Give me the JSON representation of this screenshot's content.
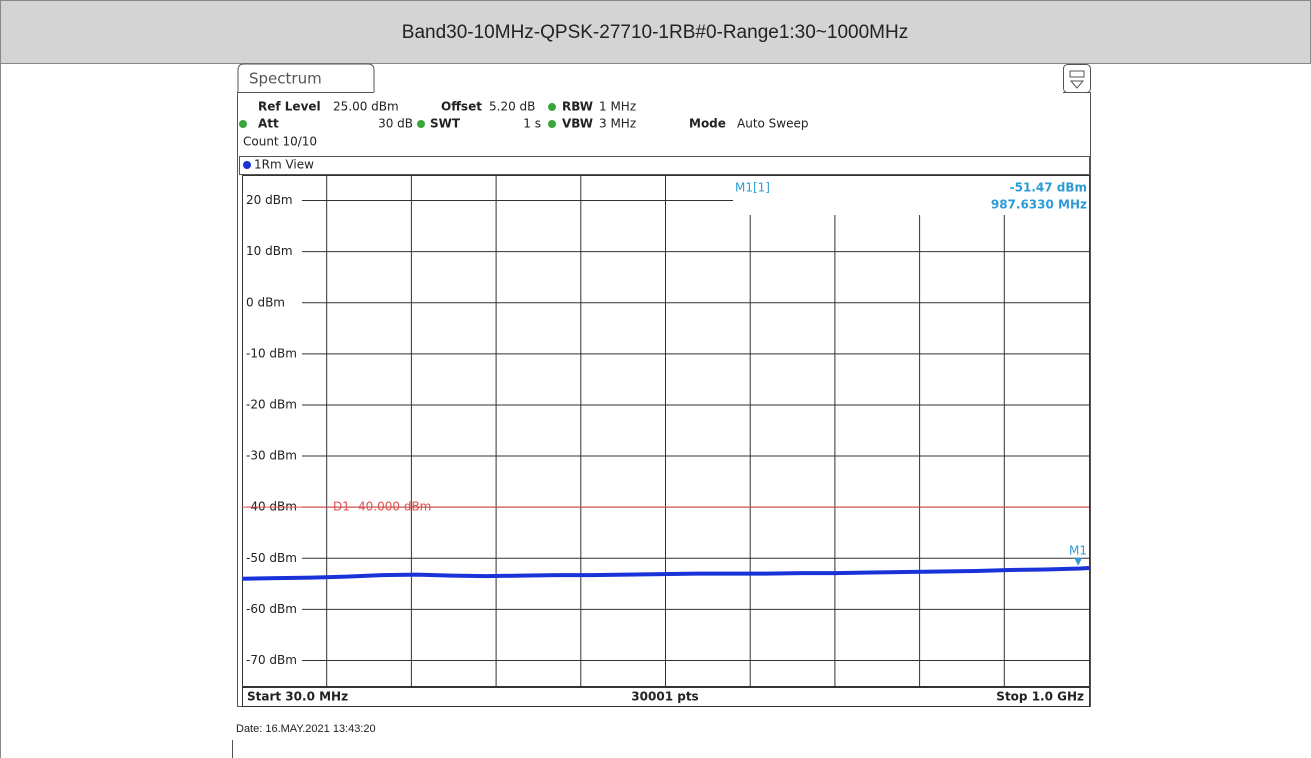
{
  "header": {
    "title": "Band30-10MHz-QPSK-27710-1RB#0-Range1:30~1000MHz"
  },
  "screen": {
    "tab": "Spectrum",
    "settings": [
      {
        "label": "Ref Level",
        "value": "25.00 dBm"
      },
      {
        "label": "Offset",
        "value": "5.20 dB"
      },
      {
        "label": "RBW",
        "value": "1 MHz"
      },
      {
        "label": "Att",
        "value": "30 dB"
      },
      {
        "label": "SWT",
        "value": "1 s"
      },
      {
        "label": "VBW",
        "value": "3 MHz"
      },
      {
        "label": "Mode",
        "value": "Auto Sweep"
      }
    ],
    "count": "Count 10/10",
    "view": "1Rm View",
    "start": "Start 30.0 MHz",
    "points": "30001 pts",
    "stop": "Stop 1.0 GHz",
    "date": "Date: 16.MAY.2021  13:43:20"
  },
  "chart_data": {
    "type": "line",
    "xlim": [
      30,
      1000
    ],
    "ylim": [
      -75,
      25
    ],
    "yticks": [
      {
        "value": 20,
        "label": "20 dBm"
      },
      {
        "value": 10,
        "label": "10 dBm"
      },
      {
        "value": 0,
        "label": "0 dBm"
      },
      {
        "value": -10,
        "label": "-10 dBm"
      },
      {
        "value": -20,
        "label": "-20 dBm"
      },
      {
        "value": -30,
        "label": "-30 dBm"
      },
      {
        "value": -40,
        "label": "-40 dBm"
      },
      {
        "value": -50,
        "label": "-50 dBm"
      },
      {
        "value": -60,
        "label": "-60 dBm"
      },
      {
        "value": -70,
        "label": "-70 dBm"
      }
    ],
    "grid": true,
    "x": [
      30,
      70,
      110,
      150,
      190,
      230,
      270,
      310,
      350,
      390,
      430,
      470,
      510,
      550,
      590,
      630,
      670,
      710,
      750,
      790,
      830,
      870,
      910,
      950,
      990,
      1000
    ],
    "series": [
      {
        "name": "1Rm",
        "color": "#1a33d8",
        "values": [
          -54.0,
          -53.9,
          -53.8,
          -53.6,
          -53.3,
          -53.2,
          -53.4,
          -53.5,
          -53.4,
          -53.3,
          -53.3,
          -53.2,
          -53.1,
          -53.0,
          -53.0,
          -53.0,
          -52.9,
          -52.9,
          -52.8,
          -52.7,
          -52.6,
          -52.5,
          -52.3,
          -52.2,
          -52.0,
          -51.9
        ]
      }
    ],
    "display_line": {
      "label": "D1 -40.000 dBm",
      "value": -40,
      "color": "#e05050"
    },
    "marker": {
      "name": "M1",
      "label": "M1[1]",
      "value": -51.47,
      "value_label": "-51.47 dBm",
      "x": 987.633,
      "x_label": "987.6330 MHz",
      "color": "#2e9bd6"
    }
  }
}
